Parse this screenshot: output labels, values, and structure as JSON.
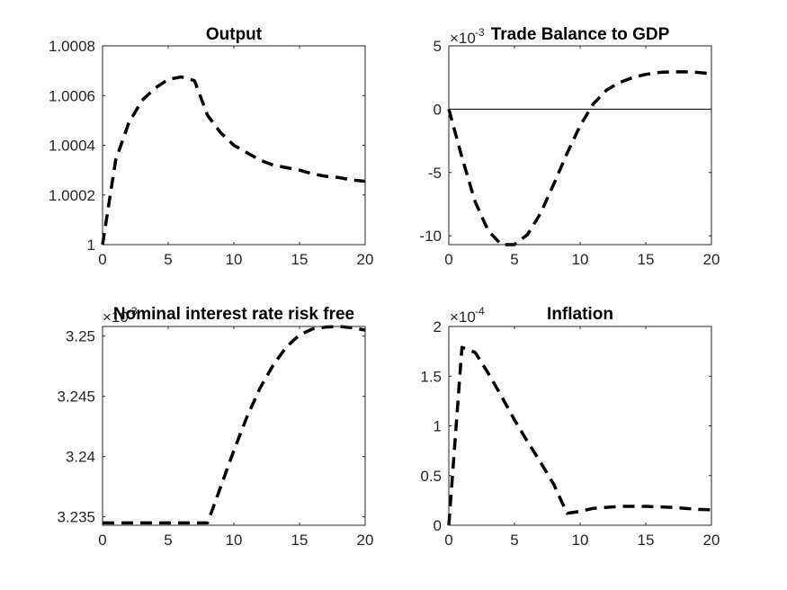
{
  "chart_data": [
    {
      "type": "line",
      "title": "Output",
      "x": [
        0,
        1,
        2,
        3,
        4,
        5,
        6,
        7,
        8,
        9,
        10,
        11,
        12,
        13,
        14,
        15,
        16,
        17,
        18,
        19,
        20
      ],
      "series": [
        {
          "values": [
            1.0,
            1.00034,
            1.00049,
            1.00058,
            1.00063,
            1.000665,
            1.000675,
            1.00066,
            1.00052,
            1.00045,
            1.0004,
            1.00037,
            1.00034,
            1.00032,
            1.00031,
            1.0003,
            1.000285,
            1.000275,
            1.00027,
            1.00026,
            1.000255
          ],
          "style": "dashed",
          "color": "#000000"
        }
      ],
      "xlim": [
        0,
        20
      ],
      "ylim": [
        1,
        1.0008
      ],
      "xticks": [
        "0",
        "5",
        "10",
        "15",
        "20"
      ],
      "yticks": [
        "1",
        "1.0002",
        "1.0004",
        "1.0006",
        "1.0008"
      ]
    },
    {
      "type": "line",
      "title": "Trade Balance to GDP",
      "exponent": {
        "base": "×10",
        "power": "-3"
      },
      "x": [
        0,
        1,
        2,
        3,
        4,
        5,
        6,
        7,
        8,
        9,
        10,
        11,
        12,
        13,
        14,
        15,
        16,
        17,
        18,
        19,
        20
      ],
      "series": [
        {
          "values": [
            0,
            -3.8,
            -7.3,
            -9.6,
            -10.7,
            -10.7,
            -9.9,
            -8.2,
            -5.9,
            -3.5,
            -1.3,
            0.4,
            1.5,
            2.1,
            2.5,
            2.75,
            2.9,
            2.95,
            2.95,
            2.9,
            2.8
          ],
          "style": "dashed",
          "color": "#000000"
        }
      ],
      "reference_line": {
        "y": 0
      },
      "xlim": [
        0,
        20
      ],
      "ylim": [
        -10.7,
        5
      ],
      "xticks": [
        "0",
        "5",
        "10",
        "15",
        "20"
      ],
      "yticks": [
        "-10",
        "-5",
        "0",
        "5"
      ]
    },
    {
      "type": "line",
      "title": "Nominal interest rate risk free",
      "exponent": {
        "base": "×10",
        "power": "-3"
      },
      "x": [
        0,
        1,
        2,
        3,
        4,
        5,
        6,
        7,
        8,
        9,
        10,
        11,
        12,
        13,
        14,
        15,
        16,
        17,
        18,
        19,
        20
      ],
      "series": [
        {
          "values": [
            3.2345,
            3.2345,
            3.2345,
            3.2345,
            3.2345,
            3.2345,
            3.2345,
            3.2345,
            3.2345,
            3.2375,
            3.2405,
            3.2433,
            3.2457,
            3.2476,
            3.2491,
            3.2501,
            3.2506,
            3.25075,
            3.2508,
            3.2507,
            3.2505
          ],
          "style": "dashed",
          "color": "#000000"
        }
      ],
      "xlim": [
        0,
        20
      ],
      "ylim": [
        3.2343,
        3.2508
      ],
      "xticks": [
        "0",
        "5",
        "10",
        "15",
        "20"
      ],
      "yticks": [
        "3.235",
        "3.24",
        "3.245",
        "3.25"
      ]
    },
    {
      "type": "line",
      "title": "Inflation",
      "exponent": {
        "base": "×10",
        "power": "-4"
      },
      "x": [
        0,
        1,
        2,
        3,
        4,
        5,
        6,
        7,
        8,
        9,
        10,
        11,
        12,
        13,
        14,
        15,
        16,
        17,
        18,
        19,
        20
      ],
      "series": [
        {
          "values": [
            0,
            1.79,
            1.74,
            1.53,
            1.3,
            1.06,
            0.84,
            0.63,
            0.41,
            0.12,
            0.14,
            0.17,
            0.18,
            0.19,
            0.19,
            0.19,
            0.185,
            0.18,
            0.17,
            0.16,
            0.155
          ],
          "style": "dashed",
          "color": "#000000"
        }
      ],
      "xlim": [
        0,
        20
      ],
      "ylim": [
        0,
        2
      ],
      "xticks": [
        "0",
        "5",
        "10",
        "15",
        "20"
      ],
      "yticks": [
        "0",
        "0.5",
        "1",
        "1.5",
        "2"
      ]
    }
  ]
}
